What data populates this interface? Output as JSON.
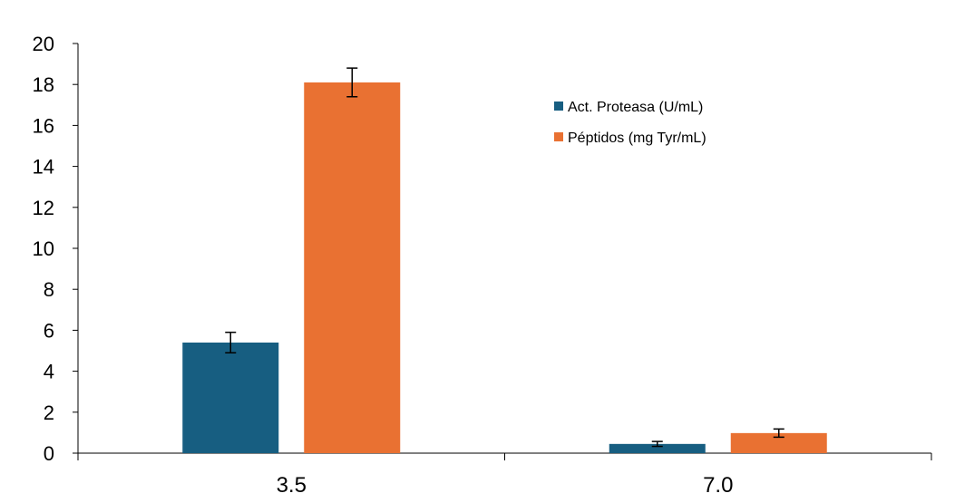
{
  "chart_data": {
    "type": "bar",
    "categories": [
      "3.5",
      "7.0"
    ],
    "series": [
      {
        "name": "Act. Proteasa (U/mL)",
        "color": "#175e81",
        "values": [
          5.4,
          0.45
        ],
        "errors": [
          0.5,
          0.12
        ]
      },
      {
        "name": "Péptidos (mg Tyr/mL)",
        "color": "#e97132",
        "values": [
          18.1,
          0.98
        ],
        "errors": [
          0.7,
          0.2
        ]
      }
    ],
    "y_ticks": [
      "0",
      "2",
      "4",
      "6",
      "8",
      "10",
      "12",
      "14",
      "16",
      "18",
      "20"
    ],
    "ylim": [
      0,
      20
    ],
    "grid": false,
    "legend_position": "top-right"
  }
}
